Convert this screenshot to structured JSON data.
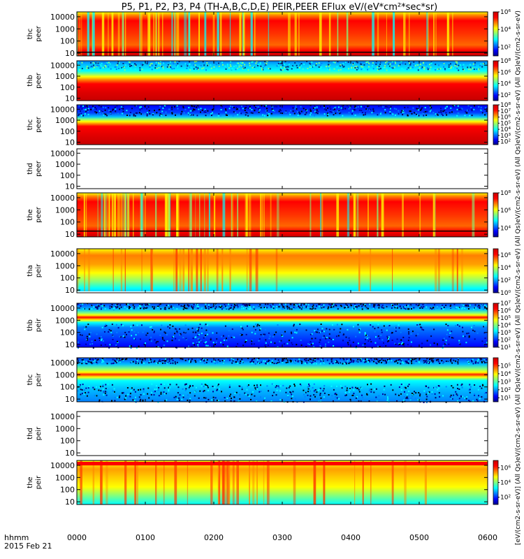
{
  "title": "P5, P1, P2, P3, P4 (TH-A,B,C,D,E) PEIR,PEER EFlux eV/(eV*cm²*sec*sr)",
  "footer": {
    "line1": "hhmm",
    "line2": "2015 Feb 21"
  },
  "right_label": "[eV/(cm2-s-sr-eV)] (All Qs)eV/(cm2-s-sr-eV) (All Qs)eV/(cm2-s-sr-eV) (All Qs)eV/(cm2-s-sr-eV) (All Qs)eV/(cm2-s-sr-eV) (All Qs)eV/(cm2-s-sr-eV) (All Qs)eV/(cm2-s-sr-eV)",
  "chart_data": {
    "type": "heatmap",
    "x_ticks": [
      "0000",
      "0100",
      "0200",
      "0300",
      "0400",
      "0500",
      "0600"
    ],
    "xlim": [
      "00:00",
      "06:00"
    ],
    "y_ticks": [
      "10",
      "100",
      "1000",
      "10000"
    ],
    "ylim_eV": [
      6,
      25000
    ],
    "y_scale": "log",
    "colormap": [
      "#00008c",
      "#0000ff",
      "#0080ff",
      "#00ffff",
      "#80ff80",
      "#ffff00",
      "#ff8000",
      "#ff0000",
      "#c80000"
    ],
    "panels": [
      {
        "probe": "thc",
        "species": "peer",
        "has_data": true,
        "colorbar_ticks": [
          "10⁶",
          "10⁴",
          "10²"
        ],
        "colorbar_range": [
          1,
          6
        ]
      },
      {
        "probe": "thb",
        "species": "peer",
        "has_data": true,
        "colorbar_ticks": [
          "10⁸",
          "10⁶",
          "10⁴",
          "10²"
        ],
        "colorbar_range": [
          1,
          8
        ]
      },
      {
        "probe": "thc",
        "species": "peer",
        "has_data": true,
        "colorbar_ticks": [
          "10⁸",
          "10⁷",
          "10⁶",
          "10⁵",
          "10⁴",
          "10³",
          "10²"
        ],
        "colorbar_range": [
          1.5,
          8
        ]
      },
      {
        "probe": "thd",
        "species": "peer",
        "has_data": false
      },
      {
        "probe": "the",
        "species": "peer",
        "has_data": true,
        "colorbar_ticks": [
          "10⁸",
          "10⁶",
          "10⁴"
        ],
        "colorbar_range": [
          3,
          8
        ]
      },
      {
        "probe": "tha",
        "species": "peir",
        "has_data": true,
        "colorbar_ticks": [
          "10⁶",
          "10⁴",
          "10²",
          "10⁰"
        ],
        "colorbar_range": [
          0,
          7
        ]
      },
      {
        "probe": "thb",
        "species": "peir",
        "has_data": true,
        "colorbar_ticks": [
          "10⁷",
          "10⁶",
          "10⁵",
          "10⁴",
          "10³",
          "10²",
          "10¹"
        ],
        "colorbar_range": [
          1,
          7
        ]
      },
      {
        "probe": "thc",
        "species": "peir",
        "has_data": true,
        "colorbar_ticks": [
          "10⁵",
          "10⁴",
          "10³",
          "10²",
          "10¹"
        ],
        "colorbar_range": [
          0.5,
          6
        ]
      },
      {
        "probe": "thd",
        "species": "peir",
        "has_data": false
      },
      {
        "probe": "the",
        "species": "peir",
        "has_data": true,
        "colorbar_ticks": [
          "10⁶",
          "10⁴",
          "10²"
        ],
        "colorbar_range": [
          1,
          7
        ]
      }
    ]
  }
}
